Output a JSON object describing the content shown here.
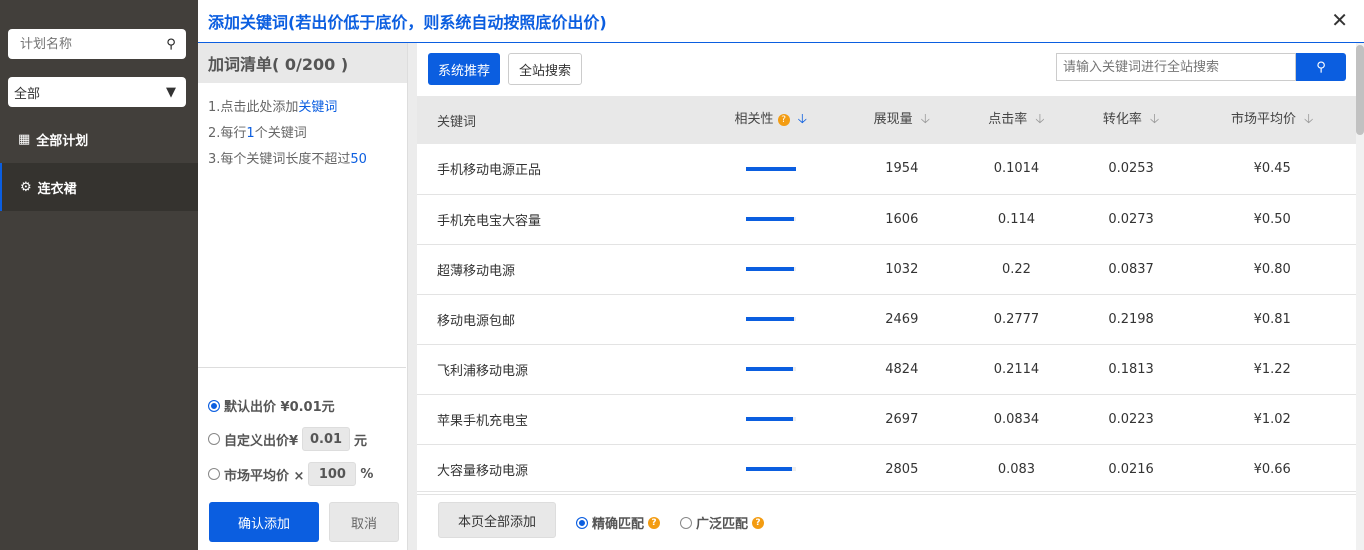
{
  "sidebar": {
    "search_placeholder": "计划名称",
    "filter": "全部",
    "items": [
      {
        "label": "全部计划",
        "icon": "grid-icon"
      },
      {
        "label": "连衣裙",
        "icon": "gear-icon"
      }
    ]
  },
  "dialog": {
    "title": "添加关键词(若出价低于底价，则系统自动按照底价出价)"
  },
  "list": {
    "title": "加词清单( 0/200 )",
    "tips": [
      {
        "a": "1.点击此处添加",
        "b": "关键词",
        "c": ""
      },
      {
        "a": "2.每行",
        "b": "1",
        "c": "个关键词"
      },
      {
        "a": "3.每个关键词长度不超过",
        "b": "50",
        "c": ""
      }
    ],
    "bid_default": "默认出价 ¥0.01元",
    "bid_custom": "自定义出价¥",
    "bid_custom_value": "0.01",
    "bid_custom_unit": "元",
    "bid_market": "市场平均价 ×",
    "bid_market_value": "100",
    "bid_market_unit": "%",
    "confirm": "确认添加",
    "cancel": "取消"
  },
  "main": {
    "tab_recommend": "系统推荐",
    "tab_search": "全站搜索",
    "search_placeholder": "请输入关键词进行全站搜索",
    "columns": [
      "关键词",
      "相关性",
      "展现量",
      "点击率",
      "转化率",
      "市场平均价"
    ],
    "rows": [
      {
        "kw": "手机移动电源正品",
        "rel": 1.0,
        "imp": "1954",
        "ctr": "0.1014",
        "cvr": "0.0253",
        "price": "¥0.45"
      },
      {
        "kw": "手机充电宝大容量",
        "rel": 0.97,
        "imp": "1606",
        "ctr": "0.114",
        "cvr": "0.0273",
        "price": "¥0.50"
      },
      {
        "kw": "超薄移动电源",
        "rel": 0.96,
        "imp": "1032",
        "ctr": "0.22",
        "cvr": "0.0837",
        "price": "¥0.80"
      },
      {
        "kw": "移动电源包邮",
        "rel": 0.96,
        "imp": "2469",
        "ctr": "0.2777",
        "cvr": "0.2198",
        "price": "¥0.81"
      },
      {
        "kw": "飞利浦移动电源",
        "rel": 0.95,
        "imp": "4824",
        "ctr": "0.2114",
        "cvr": "0.1813",
        "price": "¥1.22"
      },
      {
        "kw": "苹果手机充电宝",
        "rel": 0.95,
        "imp": "2697",
        "ctr": "0.0834",
        "cvr": "0.0223",
        "price": "¥1.02"
      },
      {
        "kw": "大容量移动电源",
        "rel": 0.93,
        "imp": "2805",
        "ctr": "0.083",
        "cvr": "0.0216",
        "price": "¥0.66"
      }
    ],
    "add_all": "本页全部添加",
    "match_exact": "精确匹配",
    "match_broad": "广泛匹配"
  },
  "colors": {
    "accent": "#0b5ee0",
    "sidebar": "#423f3b",
    "help": "#f39c12"
  }
}
